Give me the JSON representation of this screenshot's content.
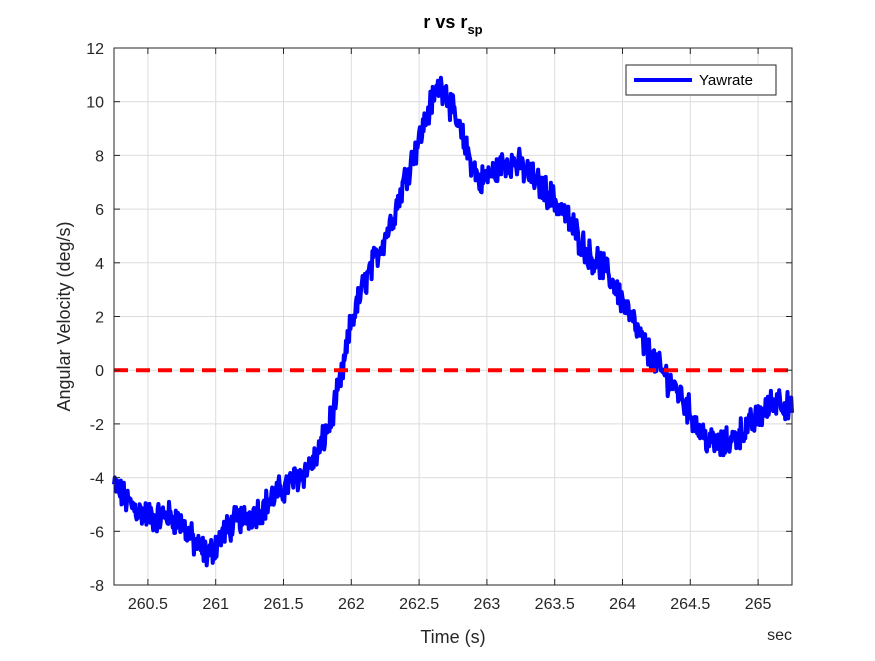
{
  "chart_data": {
    "type": "line",
    "title": "r vs r",
    "title_subscript": "sp",
    "xlabel": "Time (s)",
    "ylabel": "Angular Velocity (deg/s)",
    "x_unit_note": "sec",
    "xlim": [
      260.25,
      265.25
    ],
    "ylim": [
      -8,
      12
    ],
    "xticks": [
      260.5,
      261,
      261.5,
      262,
      262.5,
      263,
      263.5,
      264,
      264.5,
      265
    ],
    "xtick_labels": [
      "260.5",
      "261",
      "261.5",
      "262",
      "262.5",
      "263",
      "263.5",
      "264",
      "264.5",
      "265"
    ],
    "yticks": [
      -8,
      -6,
      -4,
      -2,
      0,
      2,
      4,
      6,
      8,
      10,
      12
    ],
    "ytick_labels": [
      "-8",
      "-6",
      "-4",
      "-2",
      "0",
      "2",
      "4",
      "6",
      "8",
      "10",
      "12"
    ],
    "grid": true,
    "legend": {
      "position": "top-right",
      "entries": [
        "Yawrate"
      ]
    },
    "series": [
      {
        "name": "Yawrate",
        "color": "#0000ff",
        "style": "solid",
        "noise_amplitude": 0.45,
        "x": [
          260.25,
          260.35,
          260.45,
          260.55,
          260.65,
          260.75,
          260.85,
          260.95,
          261.05,
          261.15,
          261.25,
          261.35,
          261.45,
          261.55,
          261.65,
          261.75,
          261.8,
          261.85,
          261.9,
          261.95,
          262.0,
          262.1,
          262.2,
          262.3,
          262.4,
          262.5,
          262.6,
          262.65,
          262.7,
          262.75,
          262.85,
          262.95,
          263.05,
          263.15,
          263.25,
          263.35,
          263.45,
          263.55,
          263.65,
          263.75,
          263.85,
          263.95,
          264.05,
          264.15,
          264.25,
          264.35,
          264.45,
          264.55,
          264.65,
          264.75,
          264.85,
          264.95,
          265.05,
          265.15,
          265.25
        ],
        "y": [
          -4.3,
          -4.9,
          -5.3,
          -5.5,
          -5.4,
          -5.7,
          -6.5,
          -6.9,
          -6.1,
          -5.6,
          -5.4,
          -5.1,
          -4.6,
          -4.2,
          -3.8,
          -3.2,
          -2.5,
          -1.8,
          -0.9,
          0.3,
          1.8,
          3.3,
          4.4,
          5.6,
          7.2,
          8.6,
          10.1,
          10.6,
          10.4,
          9.6,
          8.2,
          7.0,
          7.4,
          7.8,
          7.6,
          7.1,
          6.6,
          6.0,
          5.2,
          4.3,
          3.9,
          3.1,
          2.1,
          1.0,
          0.2,
          -0.4,
          -1.1,
          -2.1,
          -2.7,
          -2.8,
          -2.4,
          -2.0,
          -1.5,
          -1.0,
          -1.6
        ]
      },
      {
        "name": "",
        "color": "#ff0000",
        "style": "dashed",
        "x": [
          260.25,
          265.25
        ],
        "y": [
          0,
          0
        ]
      }
    ]
  }
}
